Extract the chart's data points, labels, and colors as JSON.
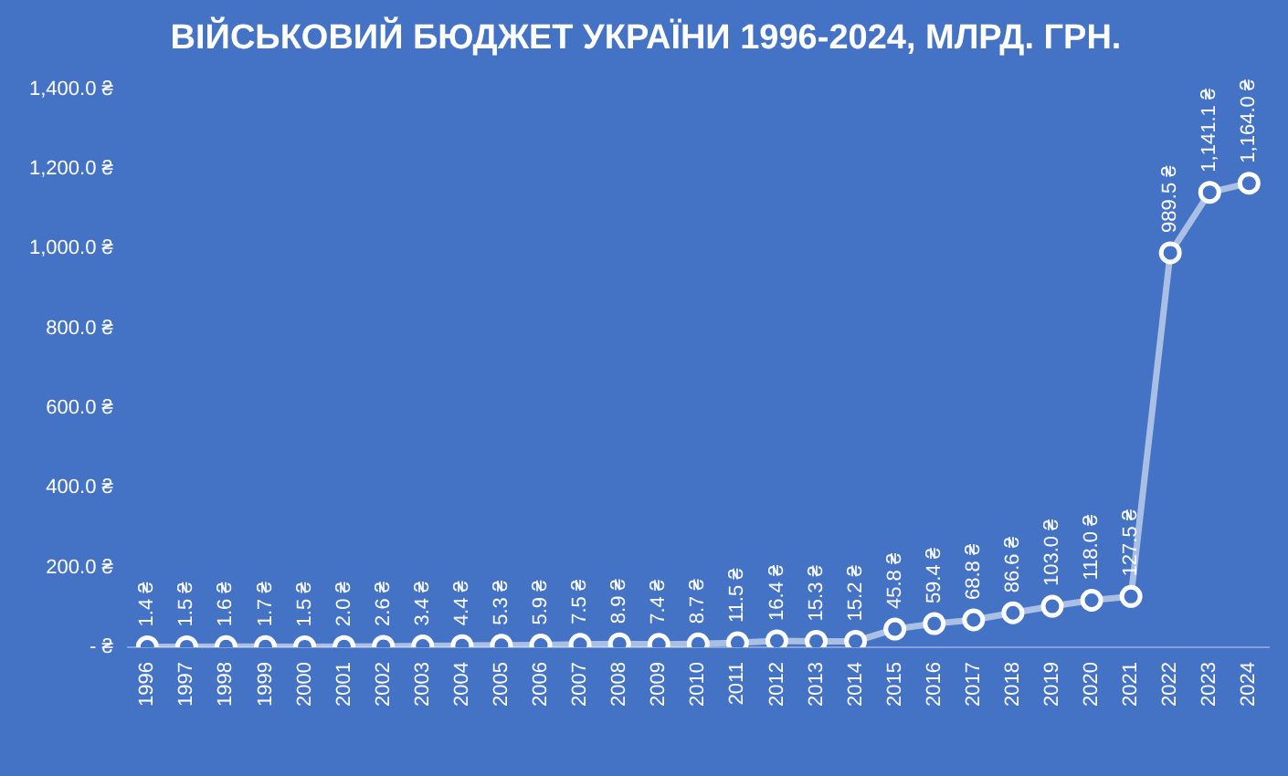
{
  "chart_data": {
    "type": "line",
    "title": "ВІЙСЬКОВИЙ БЮДЖЕТ УКРАЇНИ 1996-2024, МЛРД. ГРН.",
    "categories": [
      "1996",
      "1997",
      "1998",
      "1999",
      "2000",
      "2001",
      "2002",
      "2003",
      "2004",
      "2005",
      "2006",
      "2007",
      "2008",
      "2009",
      "2010",
      "2011",
      "2012",
      "2013",
      "2014",
      "2015",
      "2016",
      "2017",
      "2018",
      "2019",
      "2020",
      "2021",
      "2022",
      "2023",
      "2024"
    ],
    "series": [
      {
        "color": "#ffffff",
        "values": [
          1.4,
          1.5,
          1.6,
          1.7,
          1.5,
          2.0,
          2.6,
          3.4,
          4.4,
          5.3,
          5.9,
          7.5,
          8.9,
          7.4,
          8.7,
          11.5,
          16.4,
          15.3,
          15.2,
          45.8,
          59.4,
          68.8,
          86.6,
          103.0,
          118.0,
          127.5,
          989.5,
          1141.1,
          1164.0
        ],
        "value_labels": [
          "1.4 ₴",
          "1.5 ₴",
          "1.6 ₴",
          "1.7 ₴",
          "1.5 ₴",
          "2.0 ₴",
          "2.6 ₴",
          "3.4 ₴",
          "4.4 ₴",
          "5.3 ₴",
          "5.9 ₴",
          "7.5 ₴",
          "8.9 ₴",
          "7.4 ₴",
          "8.7 ₴",
          "11.5 ₴",
          "16.4 ₴",
          "15.3 ₴",
          "15.2 ₴",
          "45.8 ₴",
          "59.4 ₴",
          "68.8 ₴",
          "86.6 ₴",
          "103.0 ₴",
          "118.0 ₴",
          "127.5 ₴",
          "989.5 ₴",
          "1,141.1 ₴",
          "1,164.0 ₴"
        ]
      }
    ],
    "ylim": [
      0,
      1400
    ],
    "yticks": [
      {
        "value": 0,
        "label": "- ₴"
      },
      {
        "value": 200,
        "label": "200.0 ₴"
      },
      {
        "value": 400,
        "label": "400.0 ₴"
      },
      {
        "value": 600,
        "label": "600.0 ₴"
      },
      {
        "value": 800,
        "label": "800.0 ₴"
      },
      {
        "value": 1000,
        "label": "1,000.0 ₴"
      },
      {
        "value": 1200,
        "label": "1,200.0 ₴"
      },
      {
        "value": 1400,
        "label": "1,400.0 ₴"
      }
    ],
    "grid": false,
    "marker": "circle"
  }
}
